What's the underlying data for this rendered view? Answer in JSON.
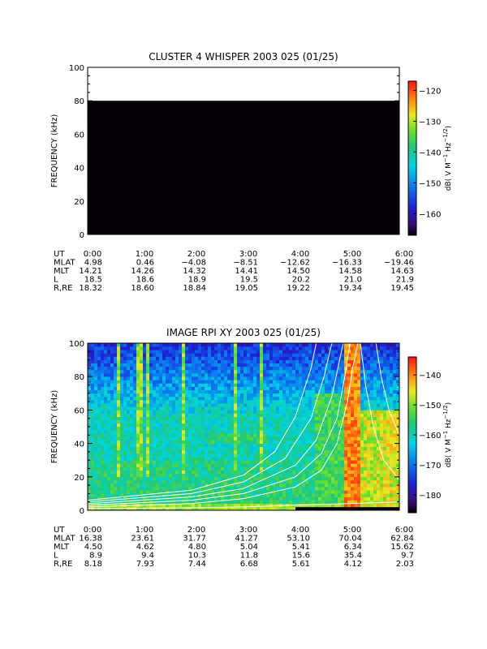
{
  "chart_data": [
    {
      "type": "heatmap",
      "title": "CLUSTER 4 WHISPER 2003 025 (01/25)",
      "ylabel": "FREQUENCY (kHz)",
      "ylim": [
        0,
        100
      ],
      "yticks": [
        "0",
        "20",
        "40",
        "60",
        "80",
        "100"
      ],
      "xticks": [
        "0:00",
        "1:00",
        "2:00",
        "3:00",
        "4:00",
        "5:00",
        "6:00"
      ],
      "colorbar": {
        "label": "dB( V M-1 Hz-1/2)",
        "range": [
          -167,
          -117
        ],
        "ticks": [
          "-120",
          "-130",
          "-140",
          "-150",
          "-160"
        ]
      },
      "data_region": {
        "freq_min": 0,
        "freq_max": 80,
        "fill": "no data (black)"
      },
      "ephemeris": {
        "rows": [
          {
            "label": "UT",
            "values": [
              "0:00",
              "1:00",
              "2:00",
              "3:00",
              "4:00",
              "5:00",
              "6:00"
            ]
          },
          {
            "label": "MLAT",
            "values": [
              "4.98",
              "0.46",
              "−4.08",
              "−8.51",
              "−12.62",
              "−16.33",
              "−19.46"
            ]
          },
          {
            "label": "MLT",
            "values": [
              "14.21",
              "14.26",
              "14.32",
              "14.41",
              "14.50",
              "14.58",
              "14.63"
            ]
          },
          {
            "label": "L",
            "values": [
              "18.5",
              "18.6",
              "18.9",
              "19.5",
              "20.2",
              "21.0",
              "21.9"
            ]
          },
          {
            "label": "R,RE",
            "values": [
              "18.32",
              "18.60",
              "18.84",
              "19.05",
              "19.22",
              "19.34",
              "19.45"
            ]
          }
        ]
      }
    },
    {
      "type": "heatmap",
      "title": "IMAGE RPI XY 2003 025 (01/25)",
      "ylabel": "FREQUENCY (kHz)",
      "ylim": [
        0,
        100
      ],
      "yticks": [
        "0",
        "20",
        "40",
        "60",
        "80",
        "100"
      ],
      "xticks": [
        "0:00",
        "1:00",
        "2:00",
        "3:00",
        "4:00",
        "5:00",
        "6:00"
      ],
      "colorbar": {
        "label": "dB( V M-1 Hz-1/2)",
        "range": [
          -186,
          -134
        ],
        "ticks": [
          "-140",
          "-150",
          "-160",
          "-170",
          "-180"
        ]
      },
      "features": [
        {
          "kind": "continuum band",
          "freq_range": [
            38,
            52
          ],
          "time_range": [
            "0:00",
            "4:00"
          ],
          "level_db": -163
        },
        {
          "kind": "emission band",
          "freq_range": [
            40,
            46
          ],
          "time_range": [
            "2:20",
            "3:30"
          ],
          "level_db": -152
        },
        {
          "kind": "intense emission",
          "freq_range": [
            0,
            100
          ],
          "time_range": [
            "4:55",
            "5:15"
          ],
          "level_db": -136
        },
        {
          "kind": "intense emission",
          "freq_range": [
            30,
            60
          ],
          "time_range": [
            "5:45",
            "6:00"
          ],
          "level_db": -142
        },
        {
          "kind": "vertical streaks",
          "times": [
            "0:35",
            "1:00",
            "1:08",
            "1:50",
            "2:50",
            "3:20"
          ],
          "level_db": -145
        }
      ],
      "curves": [
        {
          "points": [
            [
              0.0,
              2
            ],
            [
              2.0,
              4
            ],
            [
              3.0,
              7
            ],
            [
              4.0,
              14
            ],
            [
              4.5,
              24
            ],
            [
              4.8,
              40
            ],
            [
              5.0,
              65
            ],
            [
              5.1,
              85
            ],
            [
              5.2,
              100
            ]
          ]
        },
        {
          "points": [
            [
              0.0,
              3
            ],
            [
              2.0,
              6
            ],
            [
              3.0,
              10
            ],
            [
              4.0,
              20
            ],
            [
              4.5,
              34
            ],
            [
              4.8,
              55
            ],
            [
              4.95,
              80
            ],
            [
              5.05,
              100
            ]
          ]
        },
        {
          "points": [
            [
              0.0,
              4
            ],
            [
              2.0,
              8
            ],
            [
              3.0,
              13
            ],
            [
              4.0,
              27
            ],
            [
              4.4,
              42
            ],
            [
              4.7,
              68
            ],
            [
              4.85,
              90
            ],
            [
              4.92,
              100
            ]
          ]
        },
        {
          "points": [
            [
              0.0,
              5
            ],
            [
              2.0,
              10
            ],
            [
              3.0,
              17
            ],
            [
              3.8,
              31
            ],
            [
              4.3,
              55
            ],
            [
              4.55,
              80
            ],
            [
              4.7,
              100
            ]
          ]
        },
        {
          "points": [
            [
              0.0,
              6
            ],
            [
              2.0,
              12
            ],
            [
              3.0,
              21
            ],
            [
              3.6,
              35
            ],
            [
              4.0,
              56
            ],
            [
              4.3,
              85
            ],
            [
              4.4,
              100
            ]
          ]
        },
        {
          "points": [
            [
              5.25,
              100
            ],
            [
              5.35,
              75
            ],
            [
              5.5,
              50
            ],
            [
              5.7,
              30
            ],
            [
              6.0,
              18
            ]
          ]
        },
        {
          "points": [
            [
              5.55,
              100
            ],
            [
              5.65,
              80
            ],
            [
              5.8,
              60
            ],
            [
              6.0,
              45
            ]
          ]
        },
        {
          "points": [
            [
              0.0,
              1
            ],
            [
              2.0,
              1.5
            ],
            [
              3.0,
              2
            ],
            [
              4.0,
              3
            ],
            [
              5.0,
              4
            ],
            [
              6.0,
              5
            ]
          ]
        }
      ],
      "ephemeris": {
        "rows": [
          {
            "label": "UT",
            "values": [
              "0:00",
              "1:00",
              "2:00",
              "3:00",
              "4:00",
              "5:00",
              "6:00"
            ]
          },
          {
            "label": "MLAT",
            "values": [
              "16.38",
              "23.61",
              "31.77",
              "41.27",
              "53.10",
              "70.04",
              "62.84"
            ]
          },
          {
            "label": "MLT",
            "values": [
              "4.50",
              "4.62",
              "4.80",
              "5.04",
              "5.41",
              "6.34",
              "15.62"
            ]
          },
          {
            "label": "L",
            "values": [
              "8.9",
              "9.4",
              "10.3",
              "11.8",
              "15.6",
              "35.4",
              "9.7"
            ]
          },
          {
            "label": "R,RE",
            "values": [
              "8.18",
              "7.93",
              "7.44",
              "6.68",
              "5.61",
              "4.12",
              "2.03"
            ]
          }
        ]
      }
    }
  ]
}
